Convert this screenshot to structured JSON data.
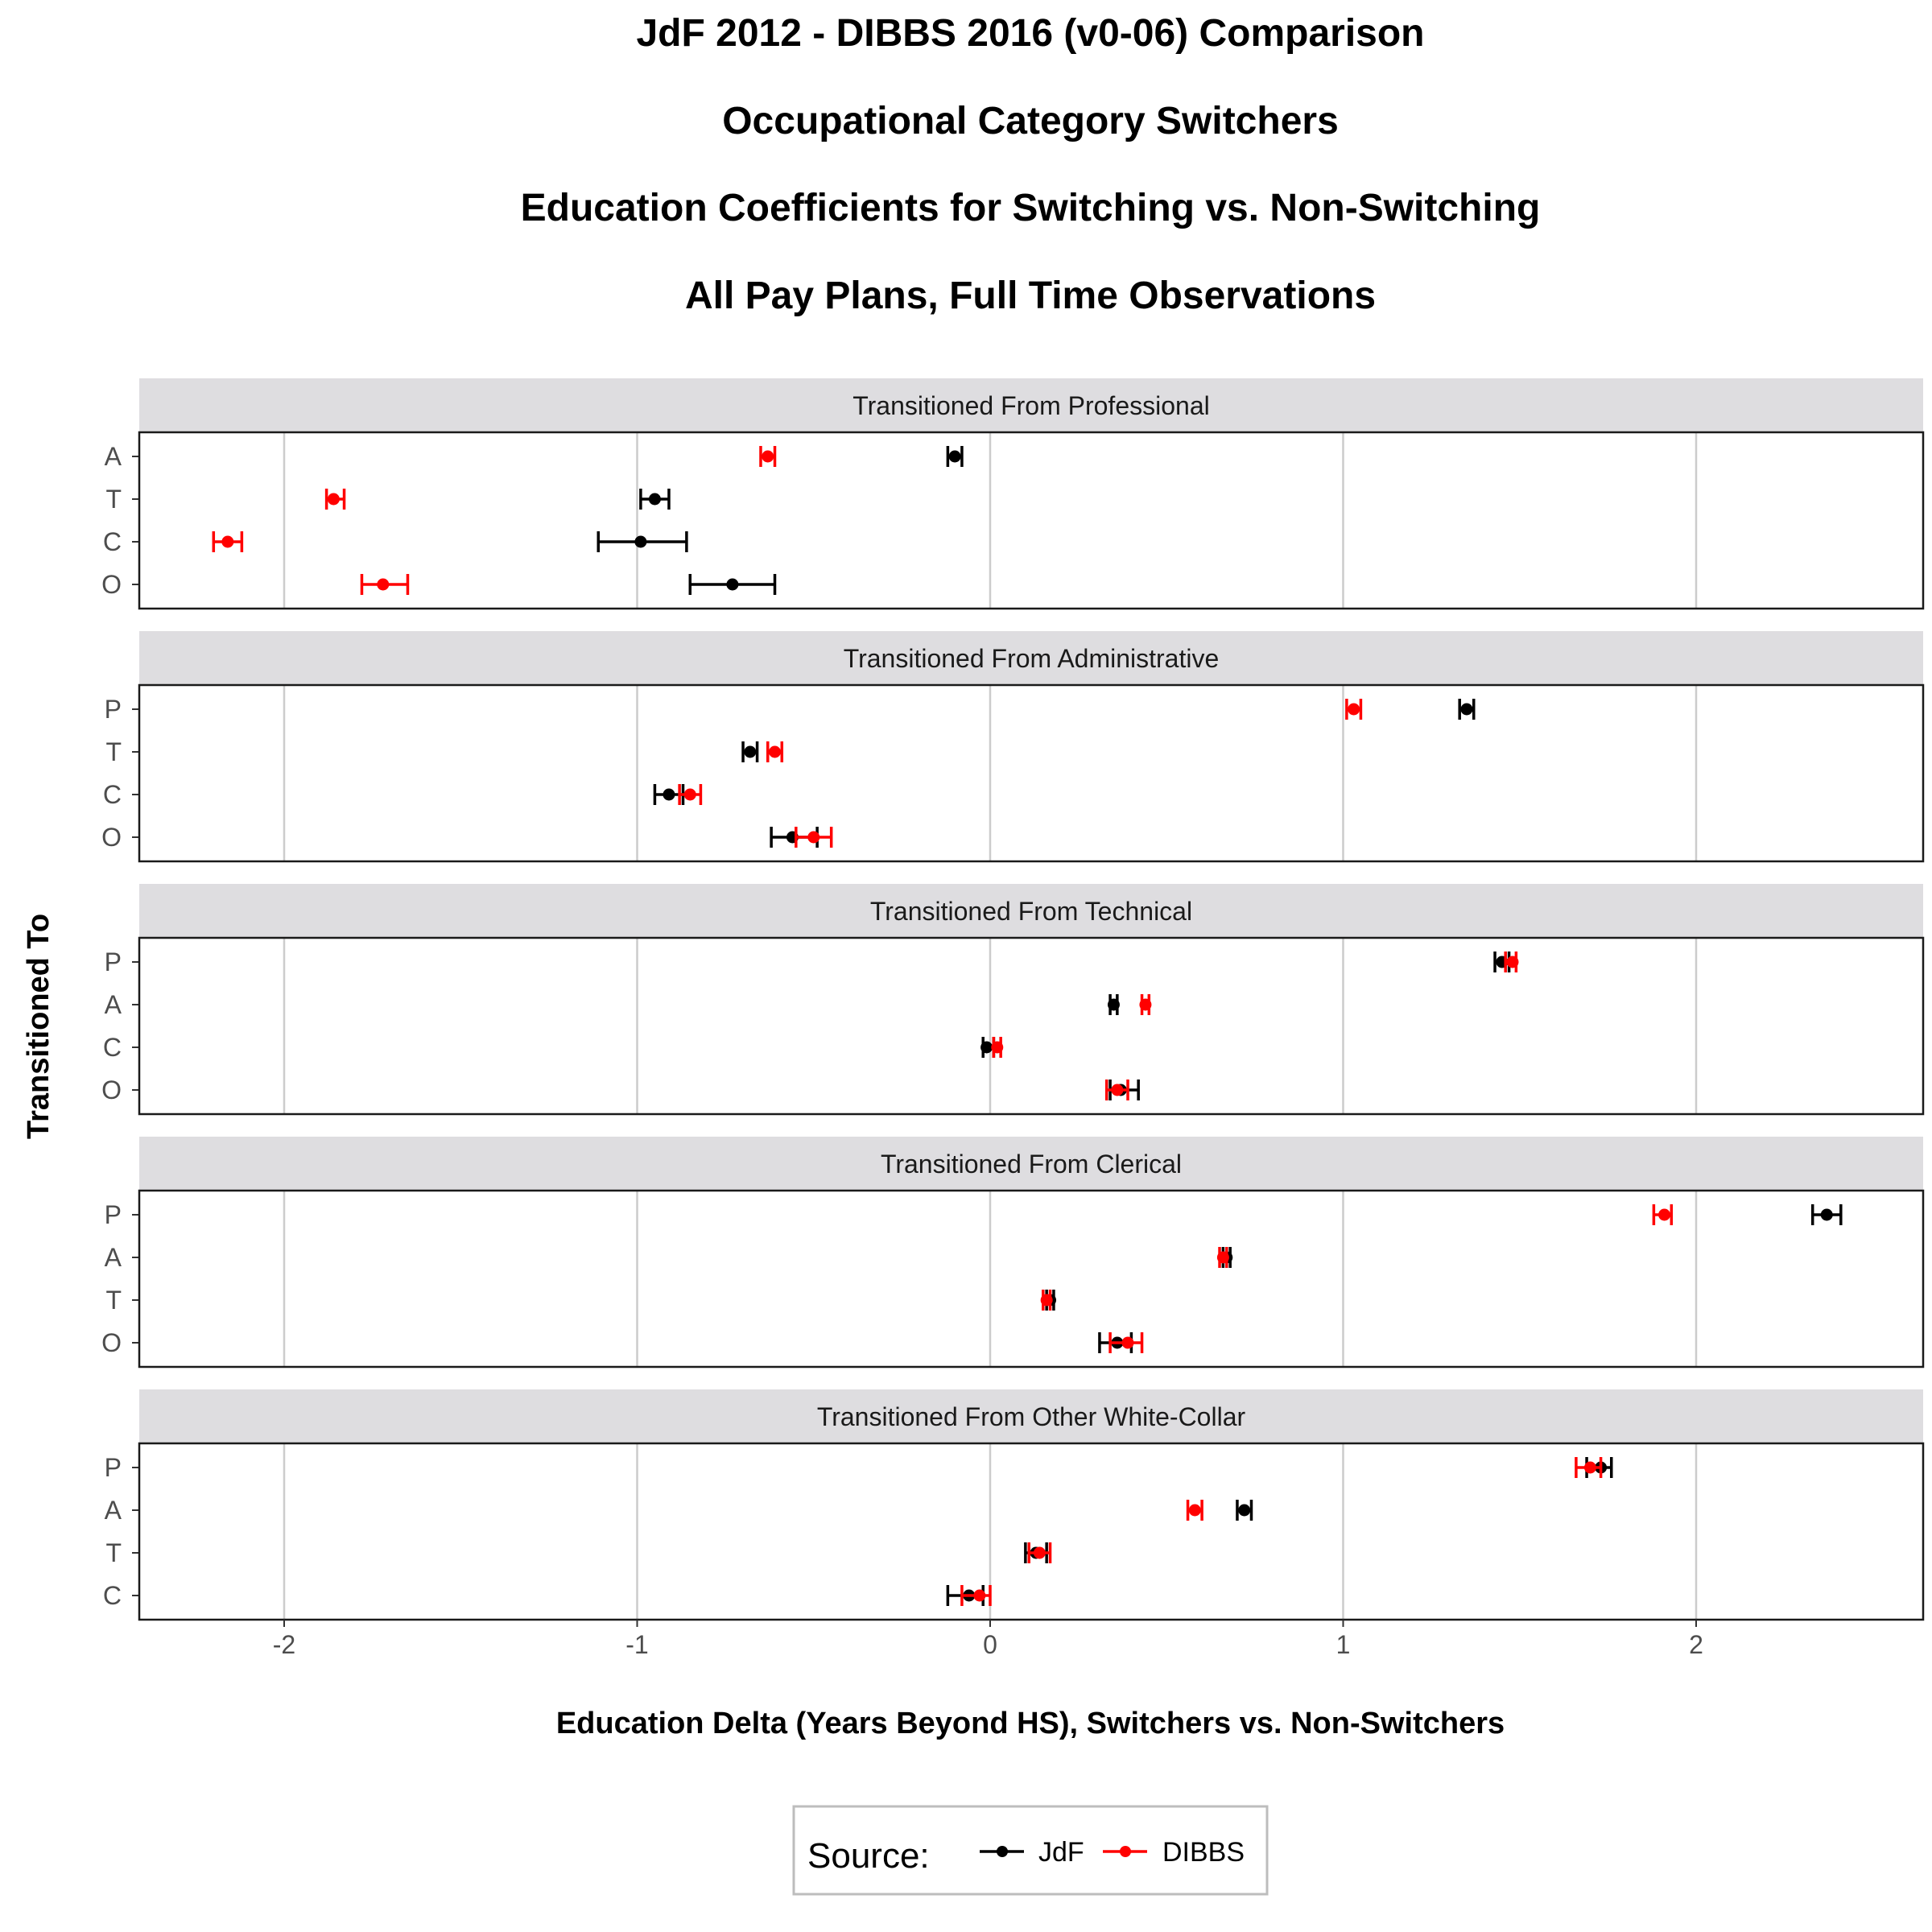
{
  "chart_data": {
    "type": "errorbar",
    "titles": [
      "JdF 2012 - DIBBS 2016 (v0-06) Comparison",
      "Occupational Category Switchers",
      "Education Coefficients for Switching vs. Non-Switching",
      "All Pay Plans, Full Time Observations"
    ],
    "xlabel": "Education Delta (Years Beyond HS), Switchers vs. Non-Switchers",
    "ylabel": "Transitioned To",
    "xlim": [
      -2.4,
      2.6
    ],
    "xticks": [
      "-2",
      "-1",
      "0",
      "1",
      "2"
    ],
    "grid": true,
    "legend": {
      "title": "Source:",
      "position": "bottom",
      "entries": [
        {
          "name": "JdF",
          "color": "#000000"
        },
        {
          "name": "DIBBS",
          "color": "#ff0000"
        }
      ]
    },
    "series_colors": {
      "JdF": "#000000",
      "DIBBS": "#ff0000"
    },
    "panels": [
      {
        "strip": "Transitioned From Professional",
        "categories": [
          "A",
          "T",
          "C",
          "O"
        ],
        "JdF": [
          {
            "cat": "A",
            "x": -0.1,
            "lo": -0.12,
            "hi": -0.08
          },
          {
            "cat": "T",
            "x": -0.95,
            "lo": -0.99,
            "hi": -0.91
          },
          {
            "cat": "C",
            "x": -0.99,
            "lo": -1.11,
            "hi": -0.86
          },
          {
            "cat": "O",
            "x": -0.73,
            "lo": -0.85,
            "hi": -0.61
          }
        ],
        "DIBBS": [
          {
            "cat": "A",
            "x": -0.63,
            "lo": -0.65,
            "hi": -0.61
          },
          {
            "cat": "T",
            "x": -1.86,
            "lo": -1.88,
            "hi": -1.83
          },
          {
            "cat": "C",
            "x": -2.16,
            "lo": -2.2,
            "hi": -2.12
          },
          {
            "cat": "O",
            "x": -1.72,
            "lo": -1.78,
            "hi": -1.65
          }
        ]
      },
      {
        "strip": "Transitioned From Administrative",
        "categories": [
          "P",
          "T",
          "C",
          "O"
        ],
        "JdF": [
          {
            "cat": "P",
            "x": 1.35,
            "lo": 1.33,
            "hi": 1.37
          },
          {
            "cat": "T",
            "x": -0.68,
            "lo": -0.7,
            "hi": -0.66
          },
          {
            "cat": "C",
            "x": -0.91,
            "lo": -0.95,
            "hi": -0.87
          },
          {
            "cat": "O",
            "x": -0.56,
            "lo": -0.62,
            "hi": -0.49
          }
        ],
        "DIBBS": [
          {
            "cat": "P",
            "x": 1.03,
            "lo": 1.01,
            "hi": 1.05
          },
          {
            "cat": "T",
            "x": -0.61,
            "lo": -0.63,
            "hi": -0.59
          },
          {
            "cat": "C",
            "x": -0.85,
            "lo": -0.88,
            "hi": -0.82
          },
          {
            "cat": "O",
            "x": -0.5,
            "lo": -0.55,
            "hi": -0.45
          }
        ]
      },
      {
        "strip": "Transitioned From Technical",
        "categories": [
          "P",
          "A",
          "C",
          "O"
        ],
        "JdF": [
          {
            "cat": "P",
            "x": 1.45,
            "lo": 1.43,
            "hi": 1.47
          },
          {
            "cat": "A",
            "x": 0.35,
            "lo": 0.34,
            "hi": 0.36
          },
          {
            "cat": "C",
            "x": -0.01,
            "lo": -0.02,
            "hi": 0.01
          },
          {
            "cat": "O",
            "x": 0.37,
            "lo": 0.34,
            "hi": 0.42
          }
        ],
        "DIBBS": [
          {
            "cat": "P",
            "x": 1.48,
            "lo": 1.46,
            "hi": 1.49
          },
          {
            "cat": "A",
            "x": 0.44,
            "lo": 0.43,
            "hi": 0.45
          },
          {
            "cat": "C",
            "x": 0.02,
            "lo": 0.01,
            "hi": 0.03
          },
          {
            "cat": "O",
            "x": 0.36,
            "lo": 0.33,
            "hi": 0.39
          }
        ]
      },
      {
        "strip": "Transitioned From Clerical",
        "categories": [
          "P",
          "A",
          "T",
          "O"
        ],
        "JdF": [
          {
            "cat": "P",
            "x": 2.37,
            "lo": 2.33,
            "hi": 2.41
          },
          {
            "cat": "A",
            "x": 0.67,
            "lo": 0.66,
            "hi": 0.68
          },
          {
            "cat": "T",
            "x": 0.17,
            "lo": 0.16,
            "hi": 0.18
          },
          {
            "cat": "O",
            "x": 0.36,
            "lo": 0.31,
            "hi": 0.4
          }
        ],
        "DIBBS": [
          {
            "cat": "P",
            "x": 1.91,
            "lo": 1.88,
            "hi": 1.93
          },
          {
            "cat": "A",
            "x": 0.66,
            "lo": 0.65,
            "hi": 0.67
          },
          {
            "cat": "T",
            "x": 0.16,
            "lo": 0.15,
            "hi": 0.17
          },
          {
            "cat": "O",
            "x": 0.39,
            "lo": 0.34,
            "hi": 0.43
          }
        ]
      },
      {
        "strip": "Transitioned From Other White-Collar",
        "categories": [
          "P",
          "A",
          "T",
          "C"
        ],
        "JdF": [
          {
            "cat": "P",
            "x": 1.73,
            "lo": 1.69,
            "hi": 1.76
          },
          {
            "cat": "A",
            "x": 0.72,
            "lo": 0.7,
            "hi": 0.74
          },
          {
            "cat": "T",
            "x": 0.13,
            "lo": 0.1,
            "hi": 0.16
          },
          {
            "cat": "C",
            "x": -0.06,
            "lo": -0.12,
            "hi": -0.02
          }
        ],
        "DIBBS": [
          {
            "cat": "P",
            "x": 1.7,
            "lo": 1.66,
            "hi": 1.73
          },
          {
            "cat": "A",
            "x": 0.58,
            "lo": 0.56,
            "hi": 0.6
          },
          {
            "cat": "T",
            "x": 0.14,
            "lo": 0.11,
            "hi": 0.17
          },
          {
            "cat": "C",
            "x": -0.03,
            "lo": -0.08,
            "hi": 0.0
          }
        ]
      }
    ]
  }
}
